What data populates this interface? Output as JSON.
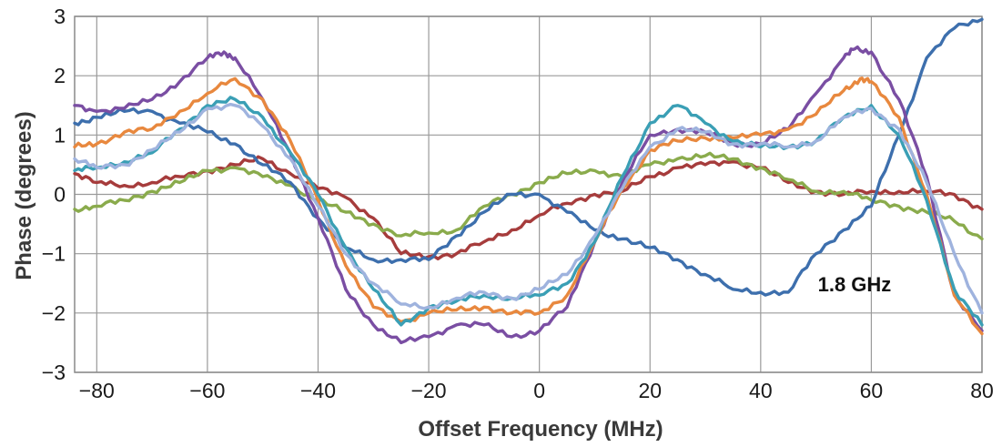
{
  "chart_data": {
    "type": "line",
    "title": "",
    "xlabel": "Offset Frequency (MHz)",
    "ylabel": "Phase (degrees)",
    "xlim": [
      -84,
      80
    ],
    "ylim": [
      -3,
      3
    ],
    "xticks": [
      -80,
      -60,
      -40,
      -20,
      0,
      20,
      40,
      60,
      80
    ],
    "xtick_labels": [
      "−80",
      "−60",
      "−40",
      "−20",
      "0",
      "20",
      "40",
      "60",
      "80"
    ],
    "yticks": [
      -3,
      -2,
      -1,
      0,
      1,
      2,
      3
    ],
    "ytick_labels": [
      "−3",
      "−2",
      "−1",
      "0",
      "1",
      "2",
      "3"
    ],
    "grid": true,
    "legend": "none",
    "annotations": [
      {
        "text": "1.8 GHz",
        "x": 50,
        "y": -1.6
      }
    ],
    "series": [
      {
        "color": "#a63c3c",
        "x": [
          -84,
          -80,
          -75,
          -70,
          -65,
          -60,
          -55,
          -50,
          -45,
          -40,
          -35,
          -30,
          -25,
          -20,
          -15,
          -10,
          -5,
          0,
          5,
          10,
          15,
          20,
          25,
          30,
          35,
          40,
          45,
          50,
          55,
          60,
          65,
          70,
          75,
          80
        ],
        "y": [
          0.35,
          0.2,
          0.15,
          0.2,
          0.3,
          0.4,
          0.5,
          0.6,
          0.35,
          0.1,
          -0.05,
          -0.4,
          -1.0,
          -1.05,
          -1.0,
          -0.8,
          -0.6,
          -0.35,
          -0.15,
          0.0,
          0.05,
          0.3,
          0.45,
          0.5,
          0.55,
          0.45,
          0.2,
          0.05,
          0.0,
          0.05,
          0.05,
          0.05,
          0.0,
          -0.25
        ]
      },
      {
        "color": "#8aab4c",
        "x": [
          -84,
          -80,
          -75,
          -70,
          -65,
          -60,
          -55,
          -50,
          -45,
          -40,
          -35,
          -30,
          -25,
          -20,
          -15,
          -10,
          -5,
          0,
          5,
          10,
          15,
          20,
          25,
          30,
          35,
          40,
          45,
          50,
          55,
          60,
          65,
          70,
          75,
          80
        ],
        "y": [
          -0.25,
          -0.2,
          -0.1,
          0.05,
          0.2,
          0.4,
          0.45,
          0.3,
          0.15,
          -0.1,
          -0.3,
          -0.5,
          -0.7,
          -0.65,
          -0.6,
          -0.2,
          0.0,
          0.2,
          0.35,
          0.4,
          0.3,
          0.5,
          0.6,
          0.65,
          0.6,
          0.45,
          0.25,
          0.05,
          0.05,
          -0.1,
          -0.2,
          -0.3,
          -0.45,
          -0.75
        ]
      },
      {
        "color": "#3d6fad",
        "x": [
          -84,
          -80,
          -75,
          -70,
          -65,
          -60,
          -55,
          -50,
          -45,
          -40,
          -35,
          -30,
          -25,
          -20,
          -15,
          -10,
          -5,
          0,
          5,
          10,
          15,
          20,
          25,
          30,
          35,
          40,
          45,
          50,
          55,
          60,
          65,
          70,
          75,
          80
        ],
        "y": [
          1.2,
          1.3,
          1.4,
          1.4,
          1.2,
          1.05,
          0.85,
          0.5,
          0.2,
          -0.4,
          -0.9,
          -1.1,
          -1.1,
          -1.1,
          -0.7,
          -0.3,
          0.0,
          0.0,
          -0.3,
          -0.6,
          -0.75,
          -0.9,
          -1.1,
          -1.35,
          -1.6,
          -1.65,
          -1.65,
          -1.0,
          -0.6,
          -0.2,
          1.0,
          2.3,
          2.8,
          2.95
        ]
      },
      {
        "color": "#7a4ea3",
        "x": [
          -84,
          -80,
          -75,
          -70,
          -65,
          -60,
          -57,
          -55,
          -50,
          -45,
          -40,
          -35,
          -30,
          -25,
          -20,
          -15,
          -10,
          -5,
          0,
          5,
          10,
          15,
          20,
          25,
          30,
          35,
          40,
          45,
          50,
          55,
          57,
          60,
          65,
          70,
          75,
          80
        ],
        "y": [
          1.5,
          1.4,
          1.45,
          1.6,
          1.9,
          2.3,
          2.4,
          2.3,
          1.6,
          0.7,
          -0.4,
          -1.6,
          -2.2,
          -2.5,
          -2.4,
          -2.2,
          -2.2,
          -2.4,
          -2.3,
          -1.9,
          -0.8,
          0.2,
          1.0,
          1.1,
          1.05,
          0.85,
          0.85,
          1.1,
          1.7,
          2.3,
          2.45,
          2.4,
          1.6,
          0.3,
          -1.7,
          -2.3
        ]
      },
      {
        "color": "#e8883e",
        "x": [
          -84,
          -80,
          -75,
          -70,
          -65,
          -60,
          -55,
          -50,
          -45,
          -40,
          -35,
          -30,
          -25,
          -20,
          -15,
          -10,
          -5,
          0,
          5,
          10,
          15,
          20,
          25,
          30,
          35,
          40,
          45,
          50,
          55,
          58,
          60,
          65,
          70,
          75,
          80
        ],
        "y": [
          0.8,
          0.85,
          1.05,
          1.1,
          1.4,
          1.7,
          1.95,
          1.6,
          0.9,
          -0.1,
          -1.2,
          -1.9,
          -2.15,
          -2.0,
          -1.95,
          -1.9,
          -2.0,
          -2.0,
          -1.7,
          -0.8,
          0.1,
          0.75,
          0.9,
          0.95,
          0.95,
          1.0,
          1.1,
          1.35,
          1.75,
          1.95,
          1.9,
          1.3,
          0.0,
          -1.7,
          -2.35
        ]
      },
      {
        "color": "#3a9fb5",
        "x": [
          -84,
          -80,
          -75,
          -70,
          -65,
          -60,
          -55,
          -50,
          -45,
          -40,
          -35,
          -30,
          -25,
          -20,
          -15,
          -10,
          -5,
          0,
          5,
          10,
          15,
          20,
          25,
          30,
          35,
          40,
          45,
          50,
          55,
          60,
          65,
          70,
          75,
          80
        ],
        "y": [
          0.4,
          0.45,
          0.55,
          0.7,
          1.1,
          1.5,
          1.6,
          1.3,
          0.7,
          0.0,
          -0.9,
          -1.6,
          -2.2,
          -1.9,
          -1.8,
          -1.7,
          -1.75,
          -1.7,
          -1.5,
          -0.8,
          0.3,
          1.2,
          1.5,
          1.2,
          0.9,
          0.8,
          0.8,
          0.9,
          1.3,
          1.5,
          1.0,
          -0.1,
          -1.6,
          -2.2
        ]
      },
      {
        "color": "#9fb3de",
        "x": [
          -84,
          -80,
          -75,
          -70,
          -65,
          -60,
          -55,
          -50,
          -45,
          -40,
          -35,
          -30,
          -25,
          -20,
          -15,
          -10,
          -5,
          0,
          5,
          10,
          15,
          20,
          25,
          30,
          35,
          40,
          45,
          50,
          55,
          60,
          65,
          70,
          75,
          80
        ],
        "y": [
          0.6,
          0.45,
          0.5,
          0.75,
          1.05,
          1.45,
          1.5,
          1.15,
          0.6,
          -0.2,
          -1.0,
          -1.5,
          -1.85,
          -1.9,
          -1.75,
          -1.65,
          -1.75,
          -1.6,
          -1.35,
          -0.7,
          0.1,
          0.8,
          1.1,
          1.05,
          0.85,
          0.85,
          0.8,
          0.9,
          1.3,
          1.45,
          1.1,
          0.2,
          -1.0,
          -2.0
        ]
      }
    ]
  }
}
